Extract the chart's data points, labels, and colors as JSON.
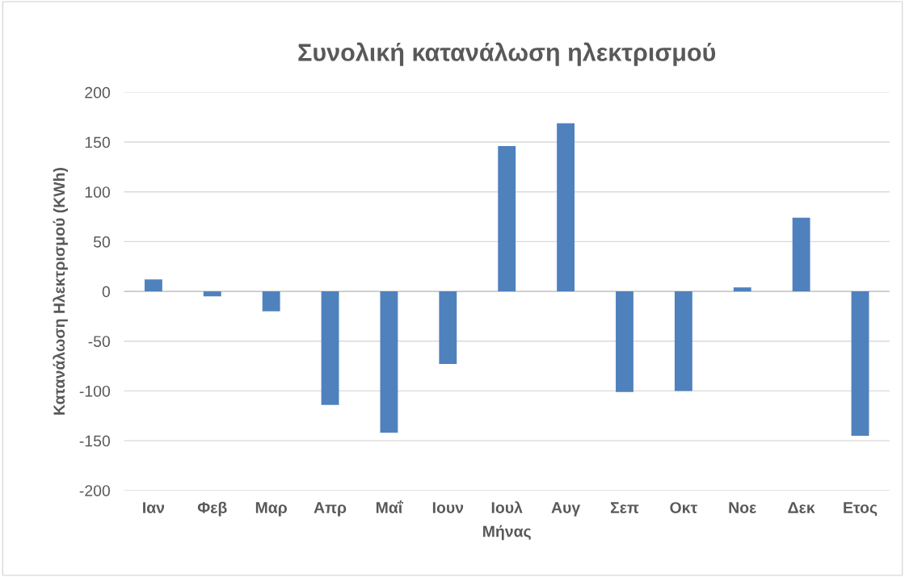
{
  "chart_data": {
    "type": "bar",
    "title": "Συνολική κατανάλωση ηλεκτρισμού",
    "xlabel": "Μήνας",
    "ylabel": "Κατανάλωση Ηλεκτρισμού (KWh)",
    "categories": [
      "Ιαν",
      "Φεβ",
      "Μαρ",
      "Απρ",
      "Μαΐ",
      "Ιουν",
      "Ιουλ",
      "Αυγ",
      "Σεπ",
      "Οκτ",
      "Νοε",
      "Δεκ",
      "Ετος"
    ],
    "values": [
      12,
      -5,
      -20,
      -114,
      -142,
      -73,
      146,
      169,
      -101,
      -100,
      4,
      74,
      -145
    ],
    "color": "#4f81bd",
    "ylim": [
      -200,
      200
    ],
    "yticks": [
      -200,
      -150,
      -100,
      -50,
      0,
      50,
      100,
      150,
      200
    ],
    "grid": "y"
  }
}
